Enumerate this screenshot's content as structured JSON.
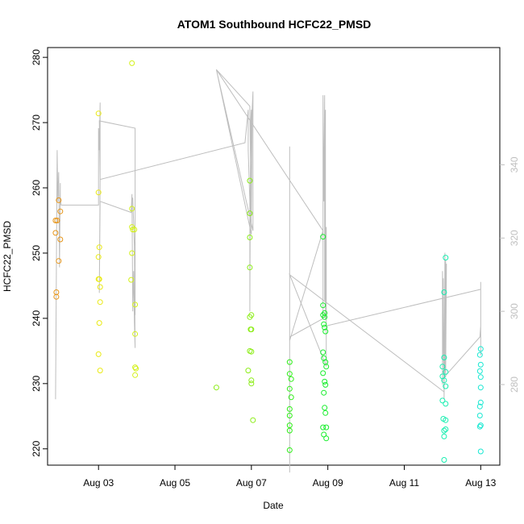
{
  "chart_data": {
    "type": "scatter",
    "title": "ATOM1 Southbound HCFC22_PMSD",
    "xlabel": "Date",
    "ylabel": "HCFC22_PMSD",
    "x_ticks": [
      "Aug 03",
      "Aug 05",
      "Aug 07",
      "Aug 09",
      "Aug 11",
      "Aug 13"
    ],
    "y_ticks": [
      "220",
      "230",
      "240",
      "250",
      "260",
      "270",
      "280"
    ],
    "y2_ticks": [
      "280",
      "300",
      "320",
      "340"
    ],
    "xlim": [
      "2016-08-01T16:00",
      "2016-08-13T12:00"
    ],
    "ylim": [
      217.5,
      281.5
    ],
    "y2lim": [
      258,
      372
    ],
    "grid": false,
    "colors": {
      "axis": "#000000",
      "right_axis": "#bfbfbf",
      "line": "#bebebe"
    },
    "point_series": [
      {
        "color": "#e69519",
        "points": [
          [
            "2016-08-01T21:00",
            255.0
          ],
          [
            "2016-08-01T21:00",
            253.1
          ],
          [
            "2016-08-01T21:30",
            244.0
          ],
          [
            "2016-08-01T21:30",
            243.3
          ],
          [
            "2016-08-01T22:00",
            255.0
          ],
          [
            "2016-08-01T23:00",
            258.1
          ],
          [
            "2016-08-01T23:00",
            248.8
          ],
          [
            "2016-08-02T00:00",
            256.4
          ],
          [
            "2016-08-02T00:00",
            252.1
          ]
        ]
      },
      {
        "color": "#eaea15",
        "points": [
          [
            "2016-08-03T00:00",
            271.4
          ],
          [
            "2016-08-03T00:00",
            259.3
          ],
          [
            "2016-08-03T00:30",
            250.9
          ],
          [
            "2016-08-03T00:00",
            249.4
          ],
          [
            "2016-08-03T00:00",
            246.0
          ],
          [
            "2016-08-03T00:30",
            246.0
          ],
          [
            "2016-08-03T01:00",
            244.8
          ],
          [
            "2016-08-03T01:00",
            242.5
          ],
          [
            "2016-08-03T00:30",
            239.3
          ],
          [
            "2016-08-03T00:00",
            234.5
          ],
          [
            "2016-08-03T01:00",
            232.0
          ]
        ]
      },
      {
        "color": "#d4f11a",
        "points": [
          [
            "2016-08-03T21:00",
            279.1
          ],
          [
            "2016-08-03T21:00",
            256.8
          ],
          [
            "2016-08-03T21:00",
            254.0
          ],
          [
            "2016-08-03T21:30",
            253.6
          ],
          [
            "2016-08-03T22:30",
            253.6
          ],
          [
            "2016-08-03T21:00",
            250.0
          ],
          [
            "2016-08-03T20:30",
            245.9
          ],
          [
            "2016-08-03T23:00",
            242.1
          ],
          [
            "2016-08-03T23:00",
            237.6
          ],
          [
            "2016-08-03T23:00",
            232.5
          ],
          [
            "2016-08-03T23:30",
            232.3
          ],
          [
            "2016-08-03T23:00",
            231.3
          ]
        ]
      },
      {
        "color": "#8ced17",
        "points": [
          [
            "2016-08-06T02:00",
            229.4
          ],
          [
            "2016-08-06T22:00",
            232.0
          ],
          [
            "2016-08-06T23:00",
            261.1
          ],
          [
            "2016-08-06T23:00",
            256.1
          ],
          [
            "2016-08-06T23:00",
            252.4
          ],
          [
            "2016-08-06T23:00",
            247.8
          ],
          [
            "2016-08-07T00:00",
            240.5
          ],
          [
            "2016-08-06T23:00",
            240.2
          ],
          [
            "2016-08-07T00:00",
            238.3
          ],
          [
            "2016-08-06T23:30",
            238.3
          ],
          [
            "2016-08-06T23:00",
            235.0
          ],
          [
            "2016-08-07T00:00",
            234.9
          ],
          [
            "2016-08-07T00:00",
            230.5
          ],
          [
            "2016-08-07T00:00",
            230.0
          ],
          [
            "2016-08-07T01:00",
            224.4
          ]
        ]
      },
      {
        "color": "#2fee18",
        "points": [
          [
            "2016-08-08T00:00",
            233.3
          ],
          [
            "2016-08-08T00:00",
            231.5
          ],
          [
            "2016-08-08T01:00",
            230.7
          ],
          [
            "2016-08-08T00:00",
            229.2
          ],
          [
            "2016-08-08T01:00",
            227.9
          ],
          [
            "2016-08-08T00:00",
            226.1
          ],
          [
            "2016-08-08T00:00",
            225.1
          ],
          [
            "2016-08-08T00:00",
            223.6
          ],
          [
            "2016-08-08T00:00",
            222.8
          ],
          [
            "2016-08-08T00:00",
            219.8
          ]
        ]
      },
      {
        "color": "#17ee2c",
        "points": [
          [
            "2016-08-08T21:00",
            252.5
          ],
          [
            "2016-08-08T21:00",
            242.0
          ],
          [
            "2016-08-08T21:00",
            240.5
          ],
          [
            "2016-08-08T22:00",
            240.8
          ],
          [
            "2016-08-08T22:00",
            240.2
          ],
          [
            "2016-08-08T21:30",
            239.1
          ],
          [
            "2016-08-08T22:00",
            238.6
          ],
          [
            "2016-08-08T22:30",
            238.0
          ],
          [
            "2016-08-08T21:00",
            234.8
          ],
          [
            "2016-08-08T21:30",
            233.9
          ],
          [
            "2016-08-08T22:30",
            233.3
          ],
          [
            "2016-08-08T23:00",
            232.6
          ],
          [
            "2016-08-08T21:00",
            231.6
          ],
          [
            "2016-08-08T22:00",
            230.3
          ],
          [
            "2016-08-08T22:30",
            229.8
          ],
          [
            "2016-08-08T21:30",
            228.6
          ],
          [
            "2016-08-08T22:00",
            226.3
          ],
          [
            "2016-08-08T22:30",
            225.5
          ],
          [
            "2016-08-08T21:00",
            223.3
          ],
          [
            "2016-08-08T23:00",
            223.3
          ],
          [
            "2016-08-08T21:30",
            222.2
          ],
          [
            "2016-08-08T23:00",
            221.6
          ]
        ]
      },
      {
        "color": "#17eeb0",
        "points": [
          [
            "2016-08-12T02:00",
            249.3
          ],
          [
            "2016-08-12T01:00",
            244.0
          ],
          [
            "2016-08-12T01:00",
            234.0
          ],
          [
            "2016-08-12T00:00",
            232.6
          ],
          [
            "2016-08-12T02:00",
            231.8
          ],
          [
            "2016-08-12T00:00",
            231.1
          ],
          [
            "2016-08-12T01:00",
            230.5
          ],
          [
            "2016-08-12T02:00",
            229.6
          ],
          [
            "2016-08-12T00:00",
            227.4
          ],
          [
            "2016-08-12T02:00",
            226.9
          ],
          [
            "2016-08-12T00:30",
            224.6
          ],
          [
            "2016-08-12T02:00",
            224.4
          ],
          [
            "2016-08-12T02:00",
            223.0
          ],
          [
            "2016-08-12T01:00",
            222.8
          ],
          [
            "2016-08-12T01:00",
            221.9
          ],
          [
            "2016-08-12T01:00",
            218.3
          ]
        ]
      },
      {
        "color": "#18e8d2",
        "points": [
          [
            "2016-08-13T00:00",
            235.3
          ],
          [
            "2016-08-12T23:30",
            234.4
          ],
          [
            "2016-08-13T00:00",
            232.9
          ],
          [
            "2016-08-12T23:30",
            231.9
          ],
          [
            "2016-08-13T00:00",
            231.0
          ],
          [
            "2016-08-13T00:00",
            229.4
          ],
          [
            "2016-08-13T00:00",
            227.1
          ],
          [
            "2016-08-12T23:30",
            226.5
          ],
          [
            "2016-08-12T23:30",
            225.1
          ],
          [
            "2016-08-13T00:00",
            223.6
          ],
          [
            "2016-08-12T23:30",
            223.4
          ],
          [
            "2016-08-13T00:00",
            219.6
          ]
        ]
      }
    ],
    "line_series": [
      {
        "axis": "right",
        "color": "#bebebe",
        "points": [
          [
            "2016-08-01T21:00",
            276
          ],
          [
            "2016-08-01T22:00",
            344
          ],
          [
            "2016-08-01T22:30",
            330
          ],
          [
            "2016-08-01T23:00",
            338
          ],
          [
            "2016-08-01T23:30",
            312
          ],
          [
            "2016-08-02T00:00",
            335
          ],
          [
            "2016-08-02T00:00",
            331
          ],
          [
            "2016-08-02T00:30",
            329
          ],
          [
            "2016-08-03T00:00",
            329
          ],
          [
            "2016-08-03T00:00",
            350
          ],
          [
            "2016-08-03T00:30",
            344
          ],
          [
            "2016-08-03T01:00",
            357
          ],
          [
            "2016-08-03T01:00",
            336
          ],
          [
            "2016-08-03T00:30",
            305
          ],
          [
            "2016-08-03T01:00",
            330
          ],
          [
            "2016-08-03T20:30",
            327
          ],
          [
            "2016-08-03T21:00",
            332
          ],
          [
            "2016-08-03T21:30",
            300
          ],
          [
            "2016-08-03T22:00",
            311
          ],
          [
            "2016-08-03T22:30",
            297
          ],
          [
            "2016-08-03T23:00",
            290
          ],
          [
            "2016-08-03T22:30",
            318
          ],
          [
            "2016-08-03T21:30",
            331
          ],
          [
            "2016-08-03T23:00",
            312
          ],
          [
            "2016-08-03T23:00",
            299
          ],
          [
            "2016-08-03T23:00",
            350
          ],
          [
            "2016-08-03T00:30",
            352
          ],
          [
            "2016-08-03T01:00",
            336
          ],
          [
            "2016-08-06T20:00",
            346
          ],
          [
            "2016-08-06T22:00",
            355
          ],
          [
            "2016-08-06T22:00",
            344
          ],
          [
            "2016-08-06T23:00",
            330
          ],
          [
            "2016-08-06T23:00",
            300
          ],
          [
            "2016-08-06T23:30",
            351
          ],
          [
            "2016-08-07T00:00",
            355
          ],
          [
            "2016-08-07T00:00",
            326
          ],
          [
            "2016-08-07T00:30",
            355
          ],
          [
            "2016-08-07T01:00",
            360
          ],
          [
            "2016-08-07T01:00",
            322
          ],
          [
            "2016-08-06T02:00",
            366
          ],
          [
            "2016-08-07T00:00",
            321
          ],
          [
            "2016-08-06T23:00",
            356
          ],
          [
            "2016-08-06T02:00",
            366
          ],
          [
            "2016-08-08T21:00",
            322
          ],
          [
            "2016-08-08T00:00",
            292
          ],
          [
            "2016-08-08T00:00",
            345
          ],
          [
            "2016-08-08T00:00",
            256
          ],
          [
            "2016-08-08T00:00",
            293
          ],
          [
            "2016-08-08T21:00",
            298
          ],
          [
            "2016-08-08T21:00",
            359
          ],
          [
            "2016-08-08T21:30",
            330
          ],
          [
            "2016-08-08T22:00",
            359
          ],
          [
            "2016-08-08T22:00",
            303
          ],
          [
            "2016-08-08T22:30",
            355
          ],
          [
            "2016-08-08T22:30",
            298
          ],
          [
            "2016-08-08T23:00",
            298
          ],
          [
            "2016-08-08T23:00",
            323
          ],
          [
            "2016-08-08T23:00",
            285
          ],
          [
            "2016-08-08T00:00",
            310
          ],
          [
            "2016-08-12T01:00",
            278
          ],
          [
            "2016-08-12T00:00",
            311
          ],
          [
            "2016-08-12T00:00",
            280
          ],
          [
            "2016-08-12T00:30",
            309
          ],
          [
            "2016-08-12T01:00",
            276
          ],
          [
            "2016-08-12T01:30",
            316
          ],
          [
            "2016-08-12T01:30",
            285
          ],
          [
            "2016-08-12T02:00",
            314
          ],
          [
            "2016-08-12T02:00",
            282
          ],
          [
            "2016-08-12T02:30",
            313
          ],
          [
            "2016-08-12T02:00",
            286
          ],
          [
            "2016-08-12T01:00",
            282
          ],
          [
            "2016-08-12T23:30",
            293
          ],
          [
            "2016-08-13T00:00",
            296
          ],
          [
            "2016-08-13T00:00",
            308
          ],
          [
            "2016-08-13T00:00",
            288
          ],
          [
            "2016-08-13T00:00",
            306
          ],
          [
            "2016-08-08T23:00",
            296
          ],
          [
            "2016-08-08T23:00",
            288
          ]
        ]
      }
    ]
  }
}
